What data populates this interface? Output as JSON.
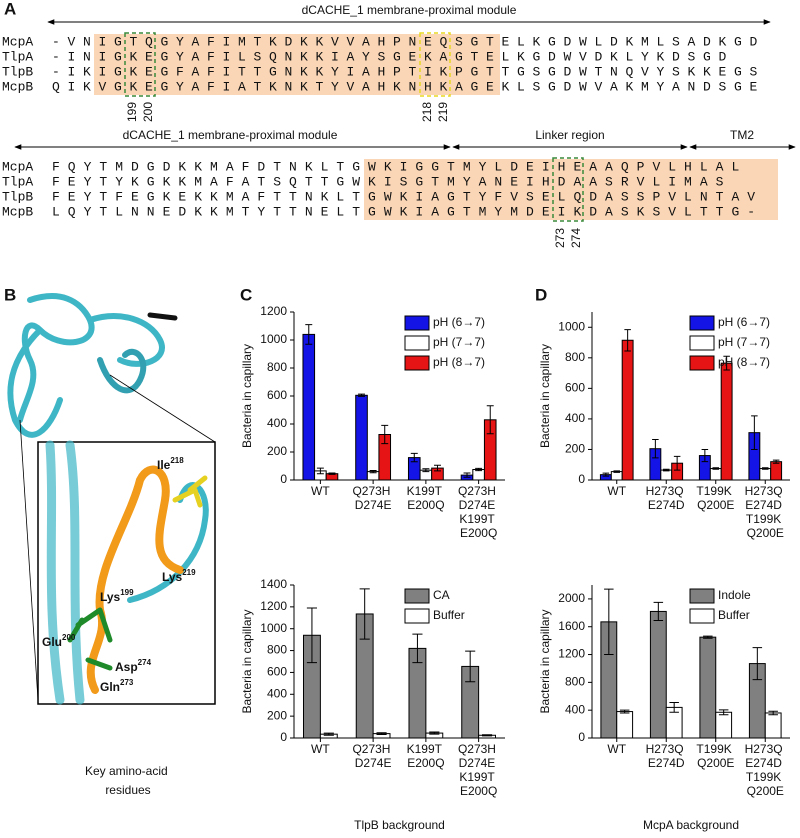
{
  "panels": {
    "a": "A",
    "b": "B",
    "c": "C",
    "d": "D"
  },
  "alignment": {
    "blocks": [
      {
        "headers": [
          "dCACHE_1 membrane-proximal module"
        ],
        "rows": [
          {
            "name": "McpA",
            "seq": "-VNIGTQGYAFIMTKDKKVVAHPNEQSGTELKGDWLDKMLSADKGD"
          },
          {
            "name": "TlpA",
            "seq": "-INIGKEGYAFILSQNKKIAYSGEKAGTELKGDWVDKLYKDSGD"
          },
          {
            "name": "TlpB",
            "seq": "-IKIGKEGFAFITTGNKKYIAHPTIKPGTTGSGDWTNQVYSKKEGS"
          },
          {
            "name": "McpB",
            "seq": "QIKVGKEGYAFIATKNKTYVAHKNHKAGEKLSGDWVAKMYANDSGE"
          }
        ],
        "positions": [
          "199",
          "200",
          "218",
          "219"
        ]
      },
      {
        "headers": [
          "dCACHE_1 membrane-proximal module",
          "Linker region",
          "TM2"
        ],
        "rows": [
          {
            "name": "McpA",
            "seq": "FQYTMDGDKKMAFDTNKLTGWKIGGTMYLDEIHEAAQPVLHLAL"
          },
          {
            "name": "TlpA",
            "seq": "FEYTYKGKKMAFATSQTTGWKISGTMYANEIHDAASRVLIMAS"
          },
          {
            "name": "TlpB",
            "seq": "FEYTFEGKEKKMAFTTNKLTGWKIAGTYFVSELQDASSPVLNTAV"
          },
          {
            "name": "McpB",
            "seq": "LQYTLNNEDKKMTYTTNELTGWKIAGTMYMDEIKDASKSVLTTG-"
          }
        ],
        "positions": [
          "273",
          "274"
        ]
      }
    ]
  },
  "panel_b": {
    "residues": [
      {
        "name": "Ile",
        "pos": "218"
      },
      {
        "name": "Lys",
        "pos": "219"
      },
      {
        "name": "Lys",
        "pos": "199"
      },
      {
        "name": "Glu",
        "pos": "200"
      },
      {
        "name": "Asp",
        "pos": "274"
      },
      {
        "name": "Gln",
        "pos": "273"
      }
    ],
    "caption": "Key amino-acid residues"
  },
  "chart_data": [
    {
      "type": "bar",
      "ylabel": "Bacteria in capillary",
      "categories": [
        "WT",
        "Q273H D274E",
        "K199T E200Q",
        "Q273H D274E K199T E200Q"
      ],
      "series": [
        {
          "name": "pH (6→7)",
          "color": "#1414e6",
          "values": [
            1040,
            605,
            160,
            35
          ],
          "errors": [
            70,
            8,
            30,
            15
          ]
        },
        {
          "name": "pH (7→7)",
          "color": "#ffffff",
          "values": [
            65,
            60,
            70,
            75
          ],
          "errors": [
            20,
            8,
            10,
            8
          ]
        },
        {
          "name": "pH (8→7)",
          "color": "#e61414",
          "values": [
            45,
            325,
            85,
            430
          ],
          "errors": [
            5,
            65,
            20,
            100
          ]
        }
      ],
      "ylim": [
        0,
        1200
      ],
      "yticks": [
        0,
        200,
        400,
        600,
        800,
        1000,
        1200
      ],
      "legend": "upper right"
    },
    {
      "type": "bar",
      "ylabel": "Bacteria in capillary",
      "xlabel": "TlpB background",
      "categories": [
        "WT",
        "Q273H D274E",
        "K199T E200Q",
        "Q273H D274E K199T E200Q"
      ],
      "series": [
        {
          "name": "CA",
          "color": "#808080",
          "values": [
            940,
            1135,
            820,
            655
          ],
          "errors": [
            250,
            230,
            130,
            140
          ]
        },
        {
          "name": "Buffer",
          "color": "#ffffff",
          "values": [
            35,
            40,
            45,
            25
          ],
          "errors": [
            10,
            8,
            10,
            5
          ]
        }
      ],
      "ylim": [
        0,
        1400
      ],
      "yticks": [
        0,
        200,
        400,
        600,
        800,
        1000,
        1200,
        1400
      ],
      "legend": "upper right"
    },
    {
      "type": "bar",
      "ylabel": "Bacteria in capillary",
      "categories": [
        "WT",
        "H273Q E274D",
        "T199K Q200E",
        "H273Q E274D T199K Q200E"
      ],
      "series": [
        {
          "name": "pH (6→7)",
          "color": "#1414e6",
          "values": [
            35,
            205,
            160,
            310
          ],
          "errors": [
            10,
            60,
            40,
            110
          ]
        },
        {
          "name": "pH (7→7)",
          "color": "#ffffff",
          "values": [
            55,
            65,
            75,
            75
          ],
          "errors": [
            5,
            5,
            5,
            5
          ]
        },
        {
          "name": "pH (8→7)",
          "color": "#e61414",
          "values": [
            915,
            110,
            765,
            120
          ],
          "errors": [
            70,
            45,
            45,
            10
          ]
        }
      ],
      "ylim": [
        0,
        1100
      ],
      "yticks": [
        0,
        200,
        400,
        600,
        800,
        1000
      ],
      "legend": "upper right"
    },
    {
      "type": "bar",
      "ylabel": "Bacteria in capillary",
      "xlabel": "McpA background",
      "categories": [
        "WT",
        "H273Q E274D",
        "T199K Q200E",
        "H273Q E274D T199K Q200E"
      ],
      "series": [
        {
          "name": "Indole",
          "color": "#808080",
          "values": [
            1670,
            1820,
            1450,
            1070
          ],
          "errors": [
            470,
            130,
            15,
            230
          ]
        },
        {
          "name": "Buffer",
          "color": "#ffffff",
          "values": [
            380,
            440,
            370,
            360
          ],
          "errors": [
            20,
            70,
            35,
            25
          ]
        }
      ],
      "ylim": [
        0,
        2200
      ],
      "yticks": [
        0,
        400,
        800,
        1200,
        1600,
        2000
      ],
      "legend": "upper right"
    }
  ]
}
